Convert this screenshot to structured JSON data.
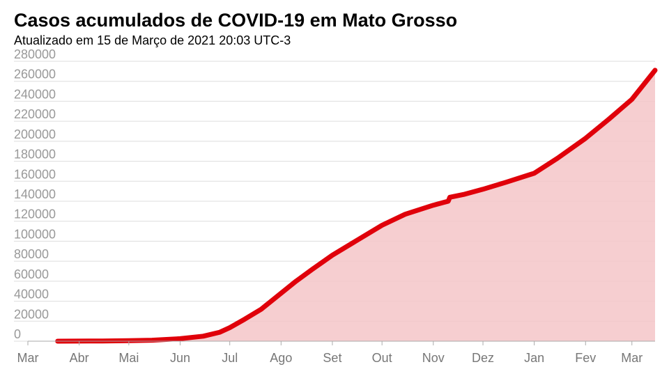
{
  "header": {
    "title": "Casos acumulados de COVID-19 em Mato Grosso",
    "subtitle": "Atualizado em 15 de Março de 2021 20:03 UTC-3"
  },
  "colors": {
    "line": "#e0000a",
    "area": "#f5c6c8",
    "grid": "#dddddd",
    "axis": "#aaaaaa"
  },
  "chart_data": {
    "type": "area",
    "title": "Casos acumulados de COVID-19 em Mato Grosso",
    "xlabel": "",
    "ylabel": "",
    "ylim": [
      0,
      280000
    ],
    "yticks": [
      0,
      20000,
      40000,
      60000,
      80000,
      100000,
      120000,
      140000,
      160000,
      180000,
      200000,
      220000,
      240000,
      260000,
      280000
    ],
    "xlim": [
      "2020-03-01",
      "2021-03-15"
    ],
    "xticks": [
      {
        "date": "2020-03-01",
        "label": "Mar"
      },
      {
        "date": "2020-04-01",
        "label": "Abr"
      },
      {
        "date": "2020-05-01",
        "label": "Mai"
      },
      {
        "date": "2020-06-01",
        "label": "Jun"
      },
      {
        "date": "2020-07-01",
        "label": "Jul"
      },
      {
        "date": "2020-08-01",
        "label": "Ago"
      },
      {
        "date": "2020-09-01",
        "label": "Set"
      },
      {
        "date": "2020-10-01",
        "label": "Out"
      },
      {
        "date": "2020-11-01",
        "label": "Nov"
      },
      {
        "date": "2020-12-01",
        "label": "Dez"
      },
      {
        "date": "2021-01-01",
        "label": "Jan"
      },
      {
        "date": "2021-02-01",
        "label": "Fev"
      },
      {
        "date": "2021-03-01",
        "label": "Mar"
      }
    ],
    "grid": true,
    "series": [
      {
        "points": [
          [
            "2020-03-19",
            0
          ],
          [
            "2020-04-15",
            200
          ],
          [
            "2020-05-01",
            500
          ],
          [
            "2020-05-15",
            1000
          ],
          [
            "2020-06-01",
            2500
          ],
          [
            "2020-06-15",
            5000
          ],
          [
            "2020-06-25",
            9000
          ],
          [
            "2020-07-01",
            13500
          ],
          [
            "2020-07-10",
            22000
          ],
          [
            "2020-07-20",
            32000
          ],
          [
            "2020-08-01",
            48000
          ],
          [
            "2020-08-10",
            60000
          ],
          [
            "2020-08-20",
            72000
          ],
          [
            "2020-09-01",
            86000
          ],
          [
            "2020-09-15",
            100000
          ],
          [
            "2020-10-01",
            116000
          ],
          [
            "2020-10-15",
            127000
          ],
          [
            "2020-11-01",
            136000
          ],
          [
            "2020-11-10",
            140000
          ],
          [
            "2020-11-11",
            144000
          ],
          [
            "2020-11-20",
            147000
          ],
          [
            "2020-12-01",
            152000
          ],
          [
            "2020-12-15",
            159000
          ],
          [
            "2021-01-01",
            168000
          ],
          [
            "2021-01-15",
            183000
          ],
          [
            "2021-02-01",
            203000
          ],
          [
            "2021-02-15",
            222000
          ],
          [
            "2021-03-01",
            242000
          ],
          [
            "2021-03-15",
            271000
          ]
        ]
      }
    ]
  }
}
